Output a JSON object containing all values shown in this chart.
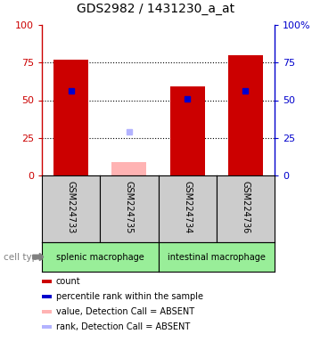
{
  "title": "GDS2982 / 1431230_a_at",
  "samples": [
    "GSM224733",
    "GSM224735",
    "GSM224734",
    "GSM224736"
  ],
  "group_names": [
    "splenic macrophage",
    "intestinal macrophage"
  ],
  "bar_values": [
    77,
    9,
    59,
    80
  ],
  "bar_colors": [
    "#cc0000",
    "#ffb3b3",
    "#cc0000",
    "#cc0000"
  ],
  "rank_values": [
    56,
    29,
    51,
    56
  ],
  "rank_colors": [
    "#0000cc",
    "#b3b3ff",
    "#0000cc",
    "#0000cc"
  ],
  "absent": [
    false,
    true,
    false,
    false
  ],
  "ylim": [
    0,
    100
  ],
  "yticks": [
    0,
    25,
    50,
    75,
    100
  ],
  "left_axis_color": "#cc0000",
  "right_axis_color": "#0000cc",
  "group_color": "#99ee99",
  "label_area_color": "#cccccc",
  "cell_type_label": "cell type",
  "legend_items": [
    {
      "label": "count",
      "color": "#cc0000"
    },
    {
      "label": "percentile rank within the sample",
      "color": "#0000cc"
    },
    {
      "label": "value, Detection Call = ABSENT",
      "color": "#ffb3b3"
    },
    {
      "label": "rank, Detection Call = ABSENT",
      "color": "#b3b3ff"
    }
  ],
  "fig_width": 3.5,
  "fig_height": 3.84,
  "dpi": 100
}
